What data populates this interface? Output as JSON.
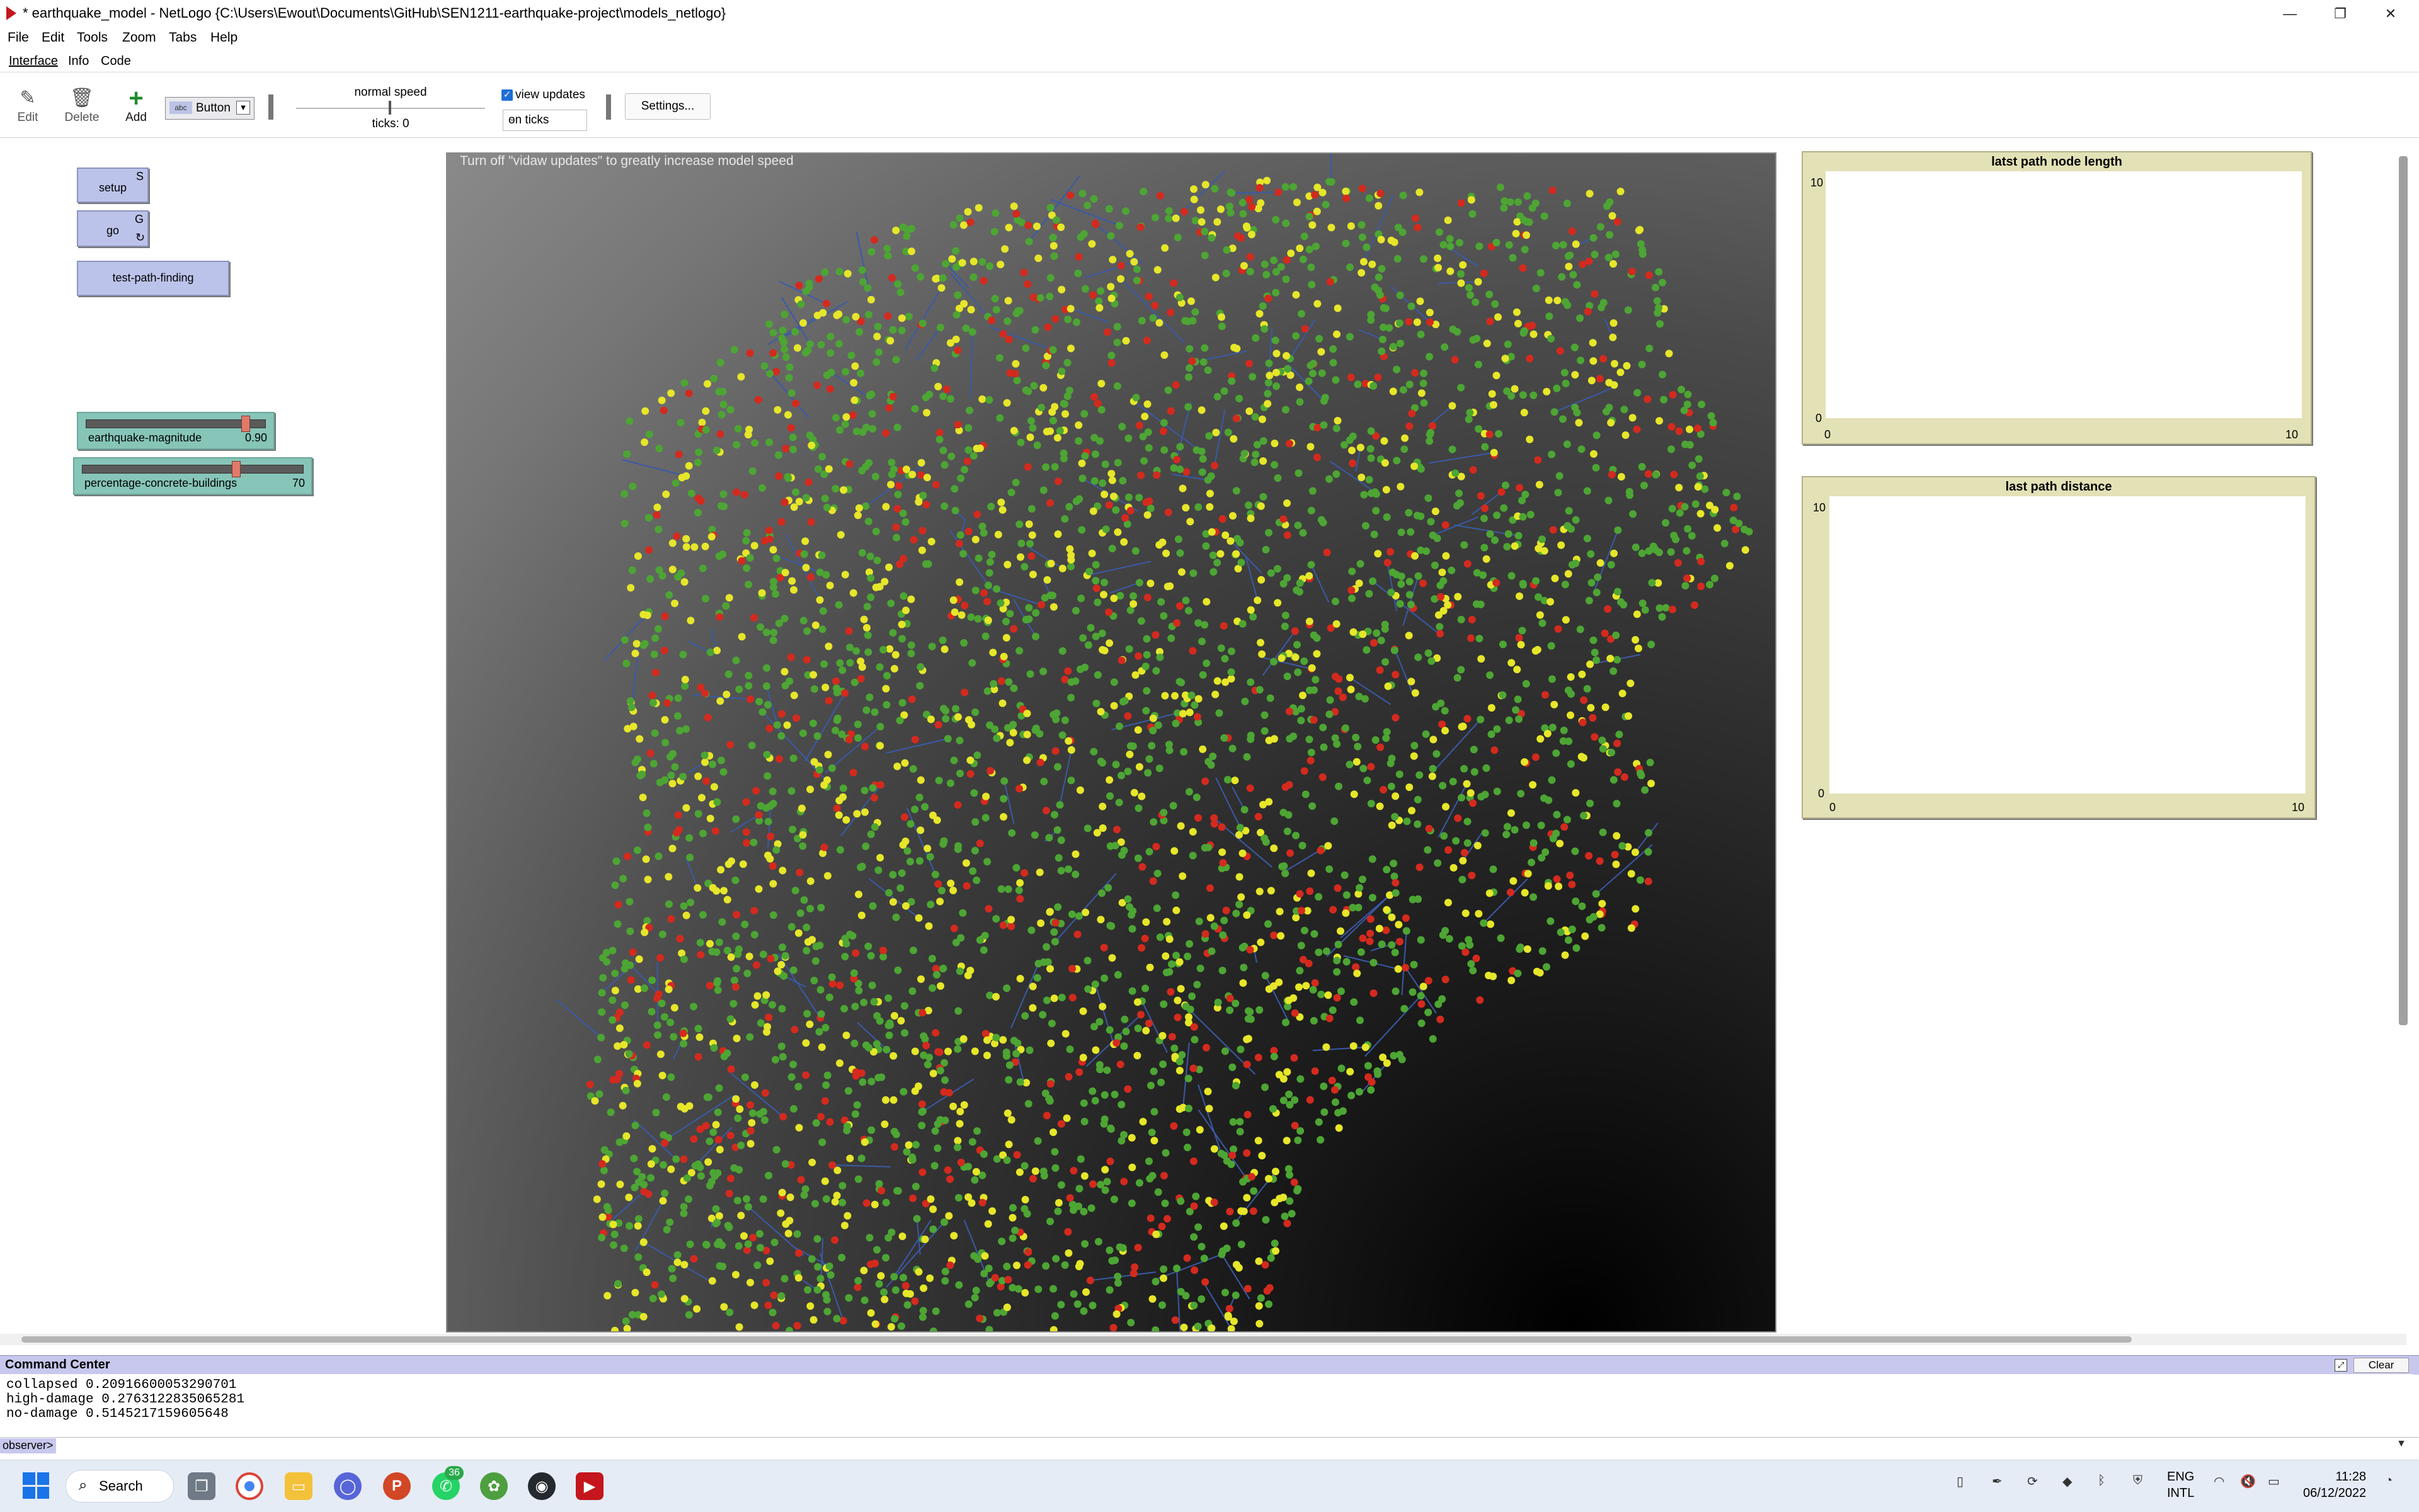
{
  "window": {
    "title": "* earthquake_model - NetLogo {C:\\Users\\Ewout\\Documents\\GitHub\\SEN1211-earthquake-project\\models_netlogo}",
    "controls": {
      "minimize": "—",
      "restore": "❐",
      "close": "✕"
    }
  },
  "menu": [
    "File",
    "Edit",
    "Tools",
    "Zoom",
    "Tabs",
    "Help"
  ],
  "tabs": [
    "Interface",
    "Info",
    "Code"
  ],
  "toolbar": {
    "edit": "Edit",
    "delete": "Delete",
    "add": "Add",
    "widget_type": "Button",
    "widget_icon": "abc",
    "speed_label": "normal speed",
    "speed_level": 0.5,
    "ticks": "ticks: 0",
    "view_updates": "view updates",
    "view_updates_checked": true,
    "update_mode": "on ticks",
    "settings": "Settings..."
  },
  "widgets": {
    "setup": {
      "label": "setup",
      "key": "S"
    },
    "go": {
      "label": "go",
      "key": "G",
      "forever_icon": "↻"
    },
    "test": {
      "label": "test-path-finding"
    },
    "slider1": {
      "name": "earthquake-magnitude",
      "value": "0.90",
      "fraction": 0.9
    },
    "slider2": {
      "name": "percentage-concrete-buildings",
      "value": "70",
      "fraction": 0.7
    }
  },
  "world": {
    "hint": "Turn off \"vidaw updates\" to greatly increase model speed",
    "colors": {
      "green": "#4da534",
      "yellow": "#e6e62a",
      "red": "#d42a1e",
      "link": "#3a5aa8"
    }
  },
  "plots": [
    {
      "title": "latst path node length",
      "ymax": "10",
      "ymin": "0",
      "xmin": "0",
      "xmax": "10"
    },
    {
      "title": "last path distance",
      "ymax": "10",
      "ymin": "0",
      "xmin": "0",
      "xmax": "10"
    }
  ],
  "command_center": {
    "title": "Command Center",
    "clear": "Clear",
    "expand_icon": "⤢",
    "output": [
      "collapsed 0.20916600053290701",
      "high-damage 0.2763122835065281",
      "no-damage 0.5145217159605648"
    ],
    "prompt": "observer>"
  },
  "taskbar": {
    "search": "Search",
    "whatsapp_badge": "36",
    "lang1": "ENG",
    "lang2": "INTL",
    "time": "11:28",
    "date": "06/12/2022"
  }
}
